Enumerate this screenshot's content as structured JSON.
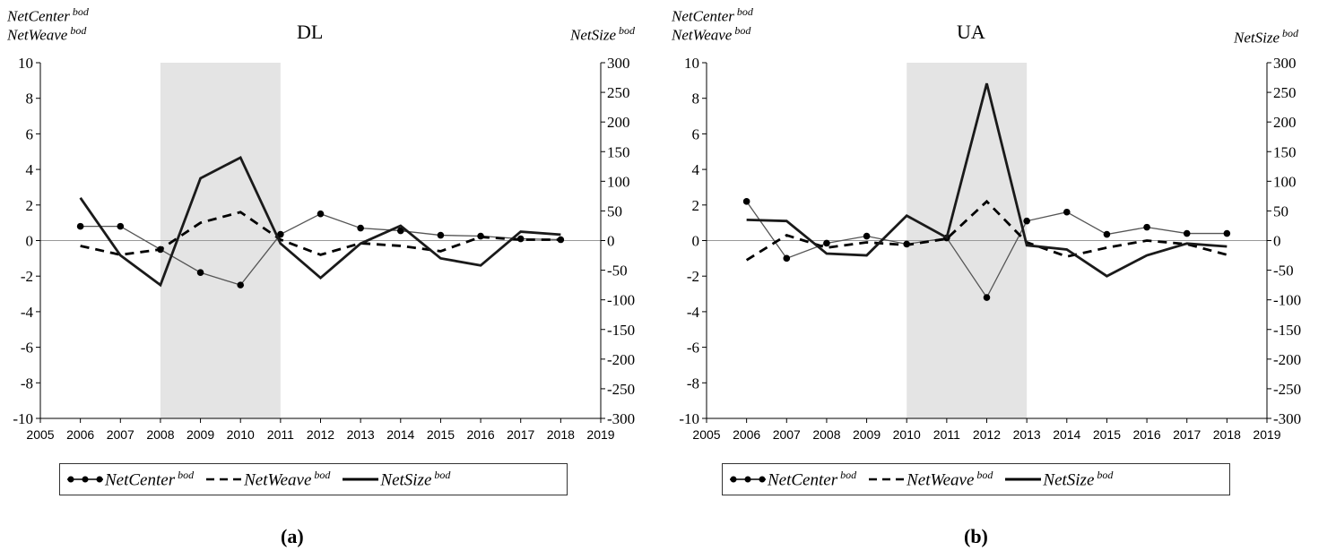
{
  "panels": [
    {
      "id": "a",
      "caption": "(a)",
      "y_left_label_1": "NetCenter",
      "y_left_label_2": "NetWeave",
      "y_right_label": "NetSize",
      "superscript": "bod",
      "legend": [
        {
          "name": "NetCenter",
          "sup": "bod",
          "style": "dot-line"
        },
        {
          "name": "NetWeave",
          "sup": "bod",
          "style": "dashed"
        },
        {
          "name": "NetSize",
          "sup": "bod",
          "style": "solid"
        }
      ]
    },
    {
      "id": "b",
      "caption": "(b)",
      "y_left_label_1": "NetCenter",
      "y_left_label_2": "NetWeave",
      "y_right_label": "NetSize",
      "superscript": "bod",
      "legend": [
        {
          "name": "NetCenter",
          "sup": "bod",
          "style": "dot-line"
        },
        {
          "name": "NetWeave",
          "sup": "bod",
          "style": "dashed"
        },
        {
          "name": "NetSize",
          "sup": "bod",
          "style": "solid"
        }
      ]
    }
  ],
  "chart_data": [
    {
      "type": "line",
      "title": "DL",
      "x": [
        2006,
        2007,
        2008,
        2009,
        2010,
        2011,
        2012,
        2013,
        2014,
        2015,
        2016,
        2017,
        2018
      ],
      "xlim": [
        2005,
        2019
      ],
      "x_ticks": [
        2005,
        2006,
        2007,
        2008,
        2009,
        2010,
        2011,
        2012,
        2013,
        2014,
        2015,
        2016,
        2017,
        2018,
        2019
      ],
      "ylim_left": [
        -10,
        10
      ],
      "y_left_ticks": [
        -10,
        -8,
        -6,
        -4,
        -2,
        0,
        2,
        4,
        6,
        8,
        10
      ],
      "ylim_right": [
        -300,
        300
      ],
      "y_right_ticks": [
        -300,
        -250,
        -200,
        -150,
        -100,
        -50,
        0,
        50,
        100,
        150,
        200,
        250,
        300
      ],
      "shaded_region": [
        2008,
        2011
      ],
      "series": [
        {
          "name": "NetCenter",
          "axis": "left",
          "style": "dot-line",
          "values": [
            0.8,
            0.8,
            -0.5,
            -1.8,
            -2.5,
            0.35,
            1.5,
            0.7,
            0.55,
            0.3,
            0.25,
            0.1,
            0.05
          ]
        },
        {
          "name": "NetWeave",
          "axis": "left",
          "style": "dashed",
          "values": [
            -0.3,
            -0.8,
            -0.5,
            1.0,
            1.6,
            0.05,
            -0.8,
            -0.15,
            -0.3,
            -0.6,
            0.2,
            0.05,
            0.05
          ]
        },
        {
          "name": "NetSize",
          "axis": "right",
          "style": "solid",
          "values": [
            72,
            -25,
            -75,
            105,
            140,
            -5,
            -63,
            -5,
            25,
            -30,
            -42,
            15,
            10
          ]
        }
      ]
    },
    {
      "type": "line",
      "title": "UA",
      "x": [
        2006,
        2007,
        2008,
        2009,
        2010,
        2011,
        2012,
        2013,
        2014,
        2015,
        2016,
        2017,
        2018
      ],
      "xlim": [
        2005,
        2019
      ],
      "x_ticks": [
        2005,
        2006,
        2007,
        2008,
        2009,
        2010,
        2011,
        2012,
        2013,
        2014,
        2015,
        2016,
        2017,
        2018,
        2019
      ],
      "ylim_left": [
        -10,
        10
      ],
      "y_left_ticks": [
        -10,
        -8,
        -6,
        -4,
        -2,
        0,
        2,
        4,
        6,
        8,
        10
      ],
      "ylim_right": [
        -300,
        300
      ],
      "y_right_ticks": [
        -300,
        -250,
        -200,
        -150,
        -100,
        -50,
        0,
        50,
        100,
        150,
        200,
        250,
        300
      ],
      "shaded_region": [
        2010,
        2013
      ],
      "series": [
        {
          "name": "NetCenter",
          "axis": "left",
          "style": "dot-line",
          "values": [
            2.2,
            -1.0,
            -0.15,
            0.25,
            -0.2,
            0.15,
            -3.2,
            1.1,
            1.6,
            0.35,
            0.75,
            0.4,
            0.4
          ]
        },
        {
          "name": "NetWeave",
          "axis": "left",
          "style": "dashed",
          "values": [
            -1.1,
            0.3,
            -0.4,
            -0.1,
            -0.25,
            0.1,
            2.2,
            -0.1,
            -0.9,
            -0.4,
            0.0,
            -0.2,
            -0.8
          ]
        },
        {
          "name": "NetSize",
          "axis": "right",
          "style": "solid",
          "values": [
            35,
            33,
            -22,
            -25,
            42,
            5,
            265,
            -8,
            -15,
            -60,
            -25,
            -5,
            -10
          ]
        }
      ]
    }
  ]
}
